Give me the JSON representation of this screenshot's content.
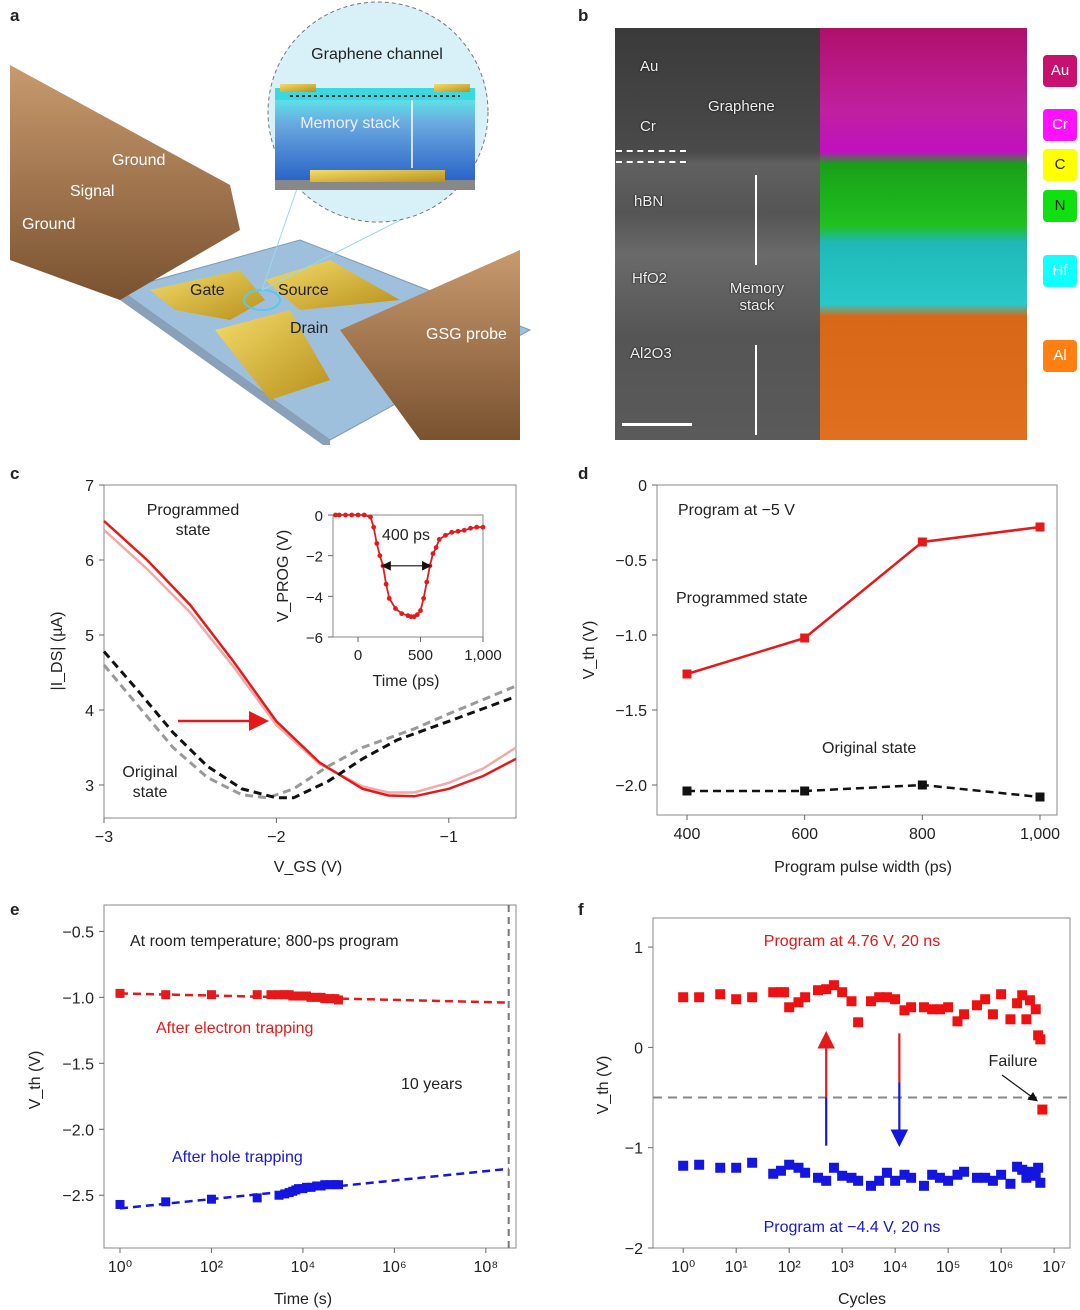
{
  "panel_labels": {
    "a": "a",
    "b": "b",
    "c": "c",
    "d": "d",
    "e": "e",
    "f": "f"
  },
  "panel_a": {
    "labels": {
      "ground1": "Ground",
      "signal": "Signal",
      "ground2": "Ground",
      "gate": "Gate",
      "source": "Source",
      "drain": "Drain",
      "probe": "GSG probe",
      "channel": "Graphene channel",
      "stack": "Memory stack"
    }
  },
  "panel_b": {
    "tem_labels": {
      "au": "Au",
      "cr": "Cr",
      "graphene": "Graphene",
      "hbn": "hBN",
      "hfo2": "HfO2",
      "al2o3": "Al2O3",
      "stack": "Memory stack"
    },
    "legend": [
      {
        "label": "Au",
        "color": "#c8106e"
      },
      {
        "label": "Cr",
        "color": "#ff10ff"
      },
      {
        "label": "C",
        "color": "#ffff00"
      },
      {
        "label": "N",
        "color": "#10e010"
      },
      {
        "label": "Hf",
        "color": "#10ffff"
      },
      {
        "label": "Al",
        "color": "#ff8010"
      }
    ]
  },
  "chart_data": [
    {
      "id": "c",
      "type": "line",
      "xlabel": "V_GS (V)",
      "ylabel": "|I_DS| (µA)",
      "xlim": [
        -3,
        -0.61
      ],
      "ylim": [
        2.56,
        7
      ],
      "xticks": [
        -3,
        -2,
        -1
      ],
      "xtick_labels": [
        "−3",
        "−2",
        "−1"
      ],
      "yticks": [
        3,
        4,
        5,
        6,
        7
      ],
      "ytick_labels": [
        "3",
        "4",
        "5",
        "6",
        "7"
      ],
      "annotations": [
        "Programmed state",
        "Original state"
      ],
      "series": [
        {
          "name": "Programmed (replicate)",
          "color": "#f4a8a8",
          "style": "solid",
          "x": [
            -3,
            -2.75,
            -2.5,
            -2.25,
            -2,
            -1.75,
            -1.5,
            -1.35,
            -1.2,
            -1.0,
            -0.8,
            -0.61
          ],
          "y": [
            6.4,
            5.88,
            5.3,
            4.58,
            3.8,
            3.28,
            2.98,
            2.9,
            2.9,
            3.03,
            3.22,
            3.5
          ]
        },
        {
          "name": "Programmed",
          "color": "#e41a1a",
          "style": "solid",
          "x": [
            -3,
            -2.75,
            -2.5,
            -2.25,
            -2,
            -1.75,
            -1.5,
            -1.35,
            -1.2,
            -1.0,
            -0.8,
            -0.61
          ],
          "y": [
            6.52,
            6.0,
            5.4,
            4.65,
            3.85,
            3.3,
            2.95,
            2.86,
            2.85,
            2.95,
            3.12,
            3.35
          ]
        },
        {
          "name": "Original (replicate)",
          "color": "#999999",
          "style": "dashed",
          "x": [
            -3,
            -2.8,
            -2.6,
            -2.4,
            -2.2,
            -2.05,
            -1.9,
            -1.7,
            -1.5,
            -1.2,
            -1.0,
            -0.61
          ],
          "y": [
            4.6,
            4.05,
            3.5,
            3.1,
            2.87,
            2.83,
            2.95,
            3.25,
            3.5,
            3.75,
            3.95,
            4.32
          ]
        },
        {
          "name": "Original",
          "color": "#111111",
          "style": "dashed",
          "x": [
            -3,
            -2.8,
            -2.6,
            -2.4,
            -2.2,
            -2.0,
            -1.9,
            -1.7,
            -1.5,
            -1.3,
            -1.0,
            -0.61
          ],
          "y": [
            4.78,
            4.25,
            3.7,
            3.25,
            2.95,
            2.83,
            2.83,
            3.05,
            3.35,
            3.6,
            3.85,
            4.18
          ]
        }
      ],
      "inset": {
        "xlabel": "Time (ps)",
        "ylabel": "V_PROG (V)",
        "xlim": [
          -200,
          1000
        ],
        "ylim": [
          -6,
          0
        ],
        "xticks": [
          0,
          500,
          1000
        ],
        "xtick_labels": [
          "0",
          "500",
          "1,000"
        ],
        "yticks": [
          0,
          -2,
          -4,
          -6
        ],
        "ytick_labels": [
          "0",
          "−2",
          "−4",
          "−6"
        ],
        "annotation": "400 ps",
        "x": [
          -180,
          -150,
          -100,
          -50,
          0,
          50,
          100,
          125,
          150,
          175,
          200,
          225,
          250,
          300,
          350,
          400,
          425,
          450,
          475,
          500,
          525,
          550,
          575,
          600,
          625,
          650,
          700,
          750,
          800,
          850,
          900,
          950,
          1000
        ],
        "y": [
          0,
          0,
          0,
          0,
          0,
          0,
          -0.1,
          -0.6,
          -1.4,
          -2.0,
          -2.5,
          -3.4,
          -4.1,
          -4.6,
          -4.85,
          -4.95,
          -5.0,
          -5.0,
          -4.9,
          -4.7,
          -4.1,
          -3.3,
          -2.5,
          -1.9,
          -1.6,
          -1.2,
          -1.0,
          -0.85,
          -0.8,
          -0.75,
          -0.65,
          -0.6,
          -0.6
        ]
      }
    },
    {
      "id": "d",
      "type": "line",
      "xlabel": "Program pulse width (ps)",
      "ylabel": "V_th (V)",
      "xlim": [
        350,
        1030
      ],
      "ylim": [
        -2.2,
        0
      ],
      "xticks": [
        400,
        600,
        800,
        1000
      ],
      "xtick_labels": [
        "400",
        "600",
        "800",
        "1,000"
      ],
      "yticks": [
        0,
        -0.5,
        -1.0,
        -1.5,
        -2.0
      ],
      "ytick_labels": [
        "0",
        "−0.5",
        "−1.0",
        "−1.5",
        "−2.0"
      ],
      "annotations": [
        "Program at −5 V",
        "Programmed state",
        "Original state"
      ],
      "series": [
        {
          "name": "Programmed state",
          "color": "#e41a1a",
          "style": "solid",
          "x": [
            400,
            600,
            800,
            1000
          ],
          "y": [
            -1.26,
            -1.02,
            -0.38,
            -0.28
          ]
        },
        {
          "name": "Original state",
          "color": "#111111",
          "style": "dashed",
          "x": [
            400,
            600,
            800,
            1000
          ],
          "y": [
            -2.04,
            -2.04,
            -2.0,
            -2.08
          ]
        }
      ]
    },
    {
      "id": "e",
      "type": "scatter",
      "xscale": "log",
      "xlabel": "Time (s)",
      "ylabel": "V_th (V)",
      "xlim_log10": [
        -0.35,
        8.66
      ],
      "ylim": [
        -2.9,
        -0.3
      ],
      "xticks_log10": [
        0,
        2,
        4,
        6,
        8
      ],
      "xtick_labels": [
        "10⁰",
        "10²",
        "10⁴",
        "10⁶",
        "10⁸"
      ],
      "yticks": [
        -0.5,
        -1.0,
        -1.5,
        -2.0,
        -2.5
      ],
      "ytick_labels": [
        "−0.5",
        "−1.0",
        "−1.5",
        "−2.0",
        "−2.5"
      ],
      "annotations": [
        "At room temperature; 800-ps program",
        "10 years"
      ],
      "ten_years_log10": 8.5,
      "series": [
        {
          "name": "After electron trapping",
          "color": "#e41a1a",
          "fit": {
            "x": [
              1,
              316000000
            ],
            "y": [
              -0.97,
              -1.04
            ]
          },
          "x": [
            1,
            10,
            100,
            1000,
            2000,
            3000,
            4000,
            5000,
            6000,
            7000,
            8000,
            10000,
            12000,
            15000,
            20000,
            25000,
            30000,
            40000,
            50000,
            60000
          ],
          "y": [
            -0.97,
            -0.98,
            -0.98,
            -0.98,
            -0.98,
            -0.98,
            -0.98,
            -0.98,
            -0.99,
            -0.99,
            -0.99,
            -0.99,
            -0.99,
            -1.0,
            -1.0,
            -1.0,
            -1.01,
            -1.01,
            -1.01,
            -1.02
          ]
        },
        {
          "name": "After hole trapping",
          "color": "#1515e0",
          "fit": {
            "x": [
              1,
              316000000
            ],
            "y": [
              -2.6,
              -2.3
            ]
          },
          "x": [
            1,
            10,
            100,
            1000,
            3000,
            4000,
            5000,
            6000,
            7000,
            8000,
            10000,
            12000,
            15000,
            20000,
            25000,
            30000,
            40000,
            50000,
            60000
          ],
          "y": [
            -2.57,
            -2.55,
            -2.53,
            -2.52,
            -2.5,
            -2.49,
            -2.48,
            -2.47,
            -2.46,
            -2.45,
            -2.45,
            -2.44,
            -2.44,
            -2.43,
            -2.43,
            -2.42,
            -2.42,
            -2.42,
            -2.42
          ]
        }
      ]
    },
    {
      "id": "f",
      "type": "scatter",
      "xscale": "log",
      "xlabel": "Cycles",
      "ylabel": "V_th (V)",
      "xlim_log10": [
        -0.57,
        7.3
      ],
      "ylim": [
        -2,
        1.29
      ],
      "xticks_log10": [
        0,
        1,
        2,
        3,
        4,
        5,
        6,
        7
      ],
      "xtick_labels": [
        "10⁰",
        "10¹",
        "10²",
        "10³",
        "10⁴",
        "10⁵",
        "10⁶",
        "10⁷"
      ],
      "yticks": [
        1,
        0,
        -1,
        -2
      ],
      "ytick_labels": [
        "1",
        "0",
        "−1",
        "−2"
      ],
      "threshold": -0.5,
      "annotations": [
        "Program at 4.76 V, 20 ns",
        "Program at −4.4 V, 20 ns",
        "Failure"
      ],
      "series": [
        {
          "name": "Program at 4.76 V, 20 ns",
          "color": "#ee1111",
          "x": [
            1,
            2,
            5,
            10,
            20,
            50,
            70,
            80,
            100,
            150,
            200,
            350,
            500,
            700,
            1000,
            1500,
            2000,
            3500,
            5000,
            7000,
            10000,
            15000,
            20000,
            35000,
            50000,
            70000,
            100000,
            150000,
            200000,
            350000,
            500000,
            700000,
            1000000,
            1500000,
            2000000,
            2500000,
            3000000,
            3500000,
            4500000,
            5000000,
            5500000,
            6000000
          ],
          "y": [
            0.5,
            0.5,
            0.53,
            0.48,
            0.5,
            0.55,
            0.55,
            0.55,
            0.4,
            0.45,
            0.5,
            0.57,
            0.58,
            0.62,
            0.55,
            0.46,
            0.25,
            0.46,
            0.5,
            0.5,
            0.48,
            0.37,
            0.4,
            0.4,
            0.38,
            0.38,
            0.4,
            0.26,
            0.33,
            0.42,
            0.48,
            0.33,
            0.53,
            0.28,
            0.44,
            0.52,
            0.28,
            0.47,
            0.38,
            0.12,
            0.08,
            -0.62
          ]
        },
        {
          "name": "Program at −4.4 V, 20 ns",
          "color": "#1515e0",
          "x": [
            1,
            2,
            5,
            10,
            20,
            50,
            70,
            100,
            150,
            200,
            350,
            500,
            700,
            1000,
            1500,
            2000,
            3500,
            5000,
            7000,
            10000,
            15000,
            20000,
            35000,
            50000,
            70000,
            100000,
            150000,
            200000,
            350000,
            500000,
            700000,
            1000000,
            1500000,
            2000000,
            2500000,
            3000000,
            3500000,
            4500000,
            5000000,
            5500000
          ],
          "y": [
            -1.18,
            -1.17,
            -1.2,
            -1.2,
            -1.15,
            -1.26,
            -1.23,
            -1.17,
            -1.2,
            -1.25,
            -1.3,
            -1.33,
            -1.2,
            -1.28,
            -1.3,
            -1.33,
            -1.38,
            -1.33,
            -1.25,
            -1.33,
            -1.27,
            -1.3,
            -1.38,
            -1.27,
            -1.3,
            -1.33,
            -1.27,
            -1.24,
            -1.3,
            -1.3,
            -1.33,
            -1.27,
            -1.36,
            -1.19,
            -1.22,
            -1.3,
            -1.24,
            -1.28,
            -1.2,
            -1.35
          ]
        }
      ]
    }
  ]
}
